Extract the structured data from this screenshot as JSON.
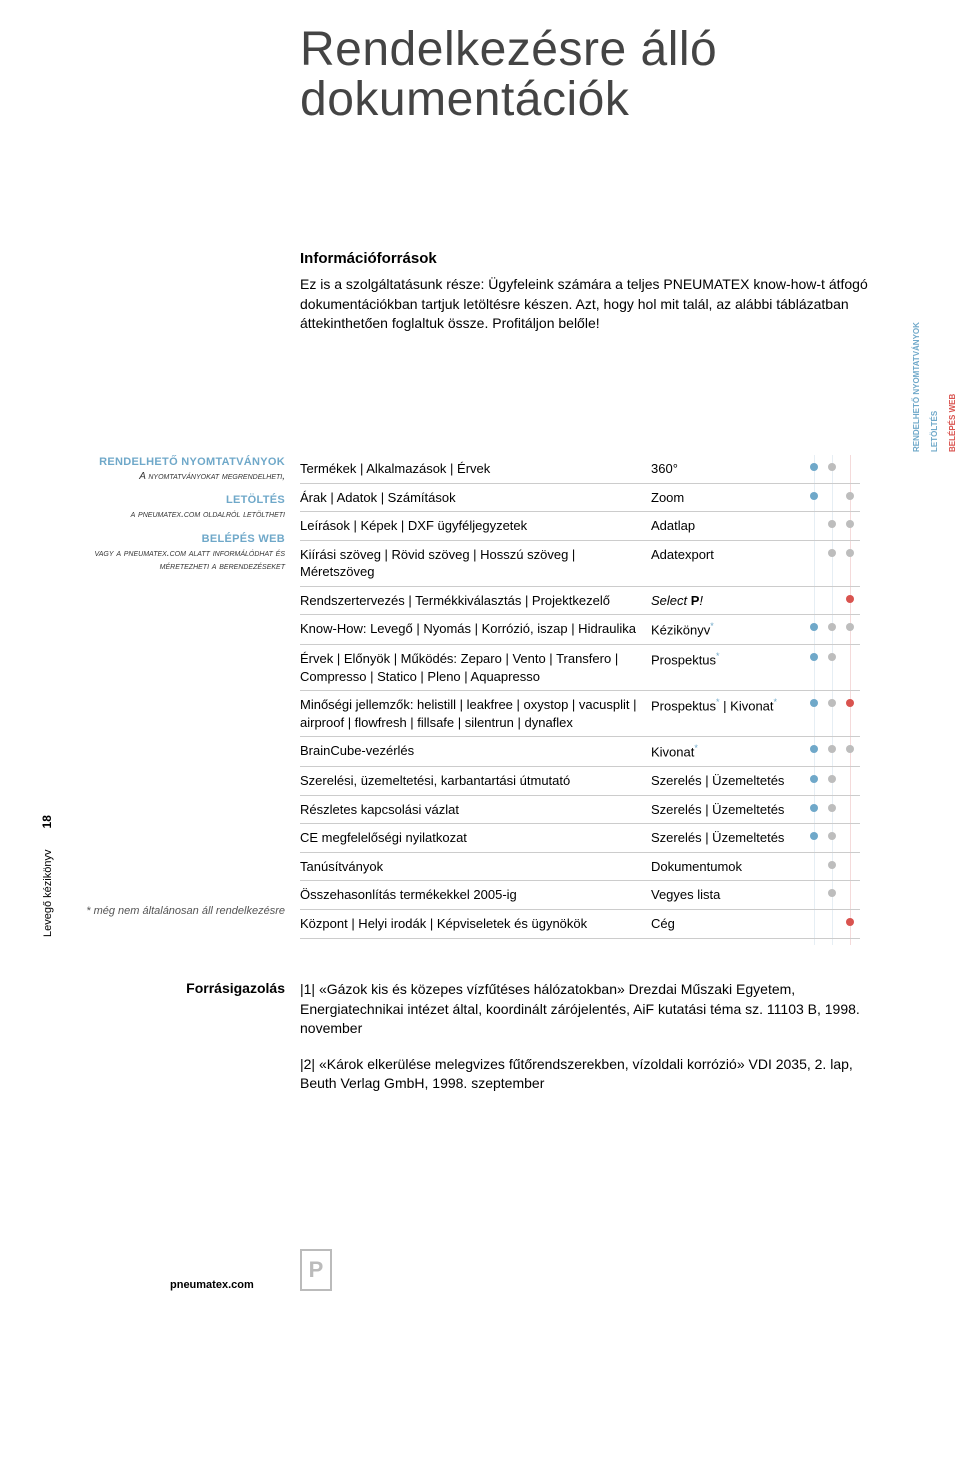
{
  "title_line1": "Rendelkezésre álló",
  "title_line2": "dokumentációk",
  "info_heading": "Információforrások",
  "intro": "Ez is a szolgáltatásunk része: Ügyfeleink számára a teljes PNEUMATEX know-how-t átfogó dokumentációkban tartjuk letöltésre készen. Azt, hogy hol mit talál, az alábbi táblázatban áttekinthetően foglaltuk össze. Profitáljon belőle!",
  "col_headers": {
    "order": "RENDELHETŐ NYOMTATVÁNYOK",
    "download": "LETÖLTÉS",
    "web": "BELÉPÉS WEB"
  },
  "sidebar": {
    "order_label": "RENDELHETŐ NYOMTATVÁNYOK",
    "order_text": "A nyomtatványokat megrendelheti,",
    "download_label": "LETÖLTÉS",
    "download_text": "a pneumatex.com oldalról letöltheti",
    "web_label": "BELÉPÉS WEB",
    "web_text": "vagy a pneumatex.com alatt informálódhat és méretezheti a berendezéseket"
  },
  "rows": [
    {
      "c1": "Termékek | Alkalmazások | Érvek",
      "c2": "360°",
      "c2sup": "",
      "dots": [
        "blue",
        "grey",
        ""
      ]
    },
    {
      "c1": "Árak | Adatok | Számítások",
      "c2": "Zoom",
      "c2sup": "",
      "dots": [
        "blue",
        "",
        "grey"
      ]
    },
    {
      "c1": "Leírások | Képek | DXF ügyféljegyzetek",
      "c2": "Adatlap",
      "c2sup": "",
      "dots": [
        "",
        "grey",
        "grey"
      ]
    },
    {
      "c1": "Kiírási szöveg | Rövid szöveg | Hosszú szöveg | Méretszöveg",
      "c2": "Adatexport",
      "c2sup": "",
      "dots": [
        "",
        "grey",
        "grey"
      ]
    },
    {
      "c1": "Rendszertervezés | Termékkiválasztás | Projektkezelő",
      "c2_html": "<span class='ital'>Select </span><b>P</b><span class='ital'>!</span>",
      "dots": [
        "",
        "",
        "red"
      ]
    },
    {
      "c1": "Know-How: Levegő | Nyomás | Korrózió, iszap | Hidraulika",
      "c2": "Kézikönyv",
      "c2sup": "*",
      "dots": [
        "blue",
        "grey",
        "grey"
      ]
    },
    {
      "c1": "Érvek | Előnyök | Működés: Zeparo | Vento | Transfero | Compresso | Statico | Pleno | Aquapresso",
      "c2": "Prospektus",
      "c2sup": "*",
      "dots": [
        "blue",
        "grey",
        ""
      ]
    },
    {
      "c1": "Minőségi jellemzők: helistill | leakfree | oxystop | vacusplit | airproof | flowfresh | fillsafe | silentrun | dynaflex",
      "c2_html": "Prospektus<span class='sup'>*</span> | Kivonat<span class='sup'>*</span>",
      "dots": [
        "blue",
        "grey",
        "red"
      ]
    },
    {
      "c1": "BrainCube-vezérlés",
      "c2": "Kivonat",
      "c2sup": "*",
      "dots": [
        "blue",
        "grey",
        "grey"
      ]
    },
    {
      "c1": "Szerelési, üzemeltetési, karbantartási útmutató",
      "c2": "Szerelés | Üzemeltetés",
      "c2sup": "",
      "dots": [
        "blue",
        "grey",
        ""
      ]
    },
    {
      "c1": "Részletes kapcsolási vázlat",
      "c2": "Szerelés | Üzemeltetés",
      "c2sup": "",
      "dots": [
        "blue",
        "grey",
        ""
      ]
    },
    {
      "c1": "CE megfelelőségi nyilatkozat",
      "c2": "Szerelés | Üzemeltetés",
      "c2sup": "",
      "dots": [
        "blue",
        "grey",
        ""
      ]
    },
    {
      "c1": "Tanúsítványok",
      "c2": "Dokumentumok",
      "c2sup": "",
      "dots": [
        "",
        "grey",
        ""
      ]
    },
    {
      "c1": "Összehasonlítás termékekkel 2005-ig",
      "c2": "Vegyes lista",
      "c2sup": "",
      "dots": [
        "",
        "grey",
        ""
      ]
    },
    {
      "c1": "Központ | Helyi irodák | Képviseletek és ügynökök",
      "c2": "Cég",
      "c2sup": "",
      "dots": [
        "",
        "",
        "red"
      ]
    }
  ],
  "asterisk_note": "* még nem általánosan áll rendelkezésre",
  "sources_label": "Forrásigazolás",
  "sources": [
    "|1| «Gázok kis és közepes vízfűtéses hálózatokban»\nDrezdai Műszaki Egyetem, Energiatechnikai intézet által, koordinált zárójelentés, AiF kutatási téma sz. 11103 B, 1998. november",
    "|2| «Károk elkerülése melegvizes fűtőrendszerekben, vízoldali korrózió» VDI 2035, 2. lap, Beuth Verlag GmbH, 1998. szeptember"
  ],
  "footer_url": "pneumatex.com",
  "logo_letter": "P",
  "spine_num": "18",
  "spine_text": "Levegő kézikönyv",
  "colors": {
    "title": "#444444",
    "accent_blue": "#6fa8c9",
    "accent_grey": "#bdbdbd",
    "accent_red": "#d9534f",
    "rule": "#cccccc"
  }
}
